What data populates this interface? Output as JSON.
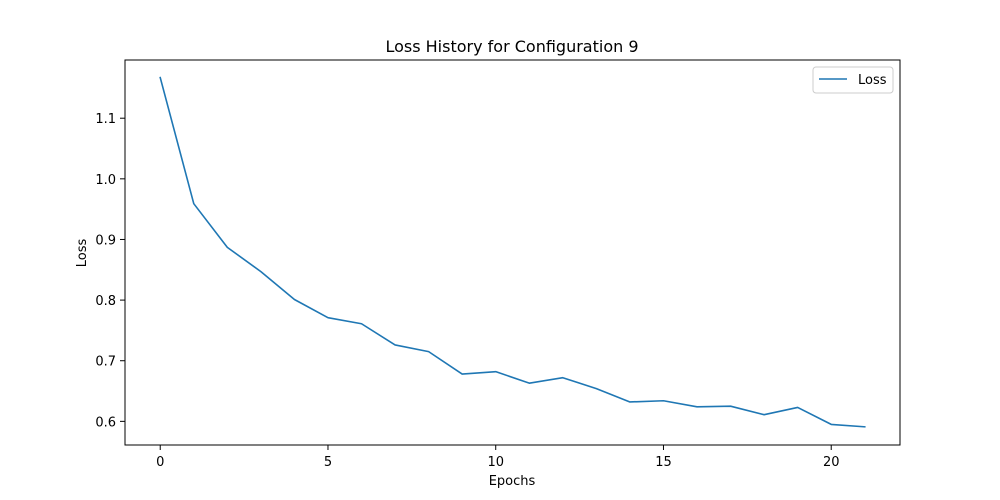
{
  "chart_data": {
    "type": "line",
    "title": "Loss History for Configuration 9",
    "xlabel": "Epochs",
    "ylabel": "Loss",
    "xlim": [
      -1.05,
      22.05
    ],
    "ylim": [
      0.561,
      1.196
    ],
    "xticks": [
      0,
      5,
      10,
      15,
      20
    ],
    "yticks": [
      0.6,
      0.7,
      0.8,
      0.9,
      1.0,
      1.1
    ],
    "xtick_labels": [
      "0",
      "5",
      "10",
      "15",
      "20"
    ],
    "ytick_labels": [
      "0.6",
      "0.7",
      "0.8",
      "0.9",
      "1.0",
      "1.1"
    ],
    "grid": false,
    "legend_position": "top-right",
    "series": [
      {
        "name": "Loss",
        "color": "#1f77b4",
        "x": [
          0,
          1,
          2,
          3,
          4,
          5,
          6,
          7,
          8,
          9,
          10,
          11,
          12,
          13,
          14,
          15,
          16,
          17,
          18,
          19,
          20,
          21
        ],
        "y": [
          1.167,
          0.959,
          0.887,
          0.847,
          0.801,
          0.771,
          0.761,
          0.726,
          0.715,
          0.678,
          0.682,
          0.663,
          0.672,
          0.654,
          0.632,
          0.634,
          0.624,
          0.625,
          0.611,
          0.623,
          0.595,
          0.591
        ]
      }
    ]
  }
}
